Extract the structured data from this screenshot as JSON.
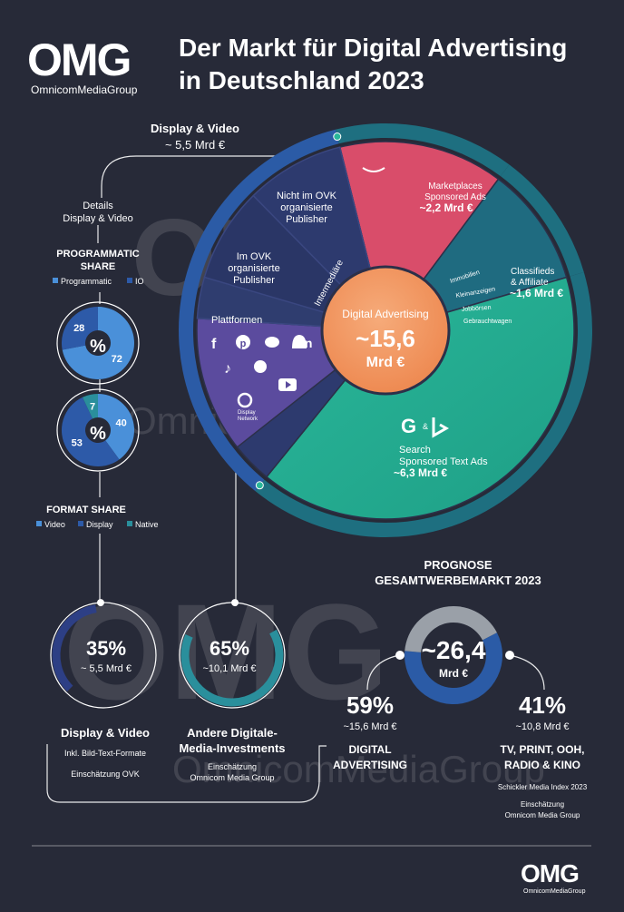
{
  "brand": {
    "logo_text": "OMG",
    "logo_sub": "OmnicomMediaGroup",
    "watermark_text": "OmnicomMediaGroup"
  },
  "title": {
    "line1": "Der Markt für Digital Advertising",
    "line2": "in Deutschland 2023"
  },
  "display_video": {
    "label": "Display & Video",
    "value": "~ 5,5 Mrd €"
  },
  "details": {
    "line1": "Details",
    "line2": "Display & Video"
  },
  "programmatic": {
    "title_line1": "PROGRAMMATIC",
    "title_line2": "SHARE",
    "legend": [
      {
        "label": "Programmatic",
        "color": "#4a90d9"
      },
      {
        "label": "IO",
        "color": "#2d5aa8"
      }
    ]
  },
  "format": {
    "title": "FORMAT SHARE",
    "legend": [
      {
        "label": "Video",
        "color": "#4a90d9"
      },
      {
        "label": "Display",
        "color": "#2d5aa8"
      },
      {
        "label": "Native",
        "color": "#2a8f9c"
      }
    ]
  },
  "percent_symbol": "%",
  "main_pie": {
    "center_label": "Digital Advertising",
    "center_value": "~15,6",
    "center_unit": "Mrd €",
    "labels": {
      "nicht_ovk": [
        "Nicht im OVK",
        "organisierte",
        "Publisher"
      ],
      "im_ovk": [
        "Im OVK",
        "organisierte",
        "Publisher"
      ],
      "intermediare": "Intermediäre",
      "plattformen": "Plattformen",
      "marketplaces": [
        "Marketplaces",
        "Sponsored Ads"
      ],
      "marketplaces_value": "~2,2 Mrd €",
      "classifieds": [
        "Classifieds",
        "& Affiliate"
      ],
      "classifieds_value": "~1,6 Mrd €",
      "classifieds_sub": [
        "Immobilien",
        "Kleinanzeigen",
        "Jobbörsen",
        "Gebrauchtwagen"
      ],
      "search": [
        "Search",
        "Sponsored Text Ads"
      ],
      "search_value": "~6,3 Mrd €",
      "google_display": [
        "Display",
        "Network"
      ],
      "search_logo_amp": "&"
    }
  },
  "bottom": {
    "dv_pct": "35%",
    "dv_value": "~ 5,5 Mrd €",
    "dv_label": "Display & Video",
    "dv_note1": "Inkl. Bild-Text-Formate",
    "dv_note2": "Einschätzung OVK",
    "other_pct": "65%",
    "other_value": "~10,1 Mrd €",
    "other_label1": "Andere Digitale-",
    "other_label2": "Media-Investments",
    "other_note1": "Einschätzung",
    "other_note2": "Omnicom Media Group"
  },
  "prognose": {
    "title1": "PROGNOSE",
    "title2": "GESAMTWERBEMARKT 2023",
    "value": "~26,4",
    "unit": "Mrd €",
    "digital_pct": "59%",
    "digital_value": "~15,6 Mrd €",
    "digital_label1": "DIGITAL",
    "digital_label2": "ADVERTISING",
    "tv_pct": "41%",
    "tv_value": "~10,8 Mrd €",
    "tv_label1": "TV, PRINT, OOH,",
    "tv_label2": "RADIO & KINO",
    "source1": "Schickler Media Index 2023",
    "source2": "Einschätzung",
    "source3": "Omnicom Media Group"
  },
  "chart_data": [
    {
      "type": "pie",
      "title": "Digital Advertising",
      "total": "~15,6 Mrd €",
      "categories": [
        "Display & Video",
        "Marketplaces Sponsored Ads",
        "Classifieds & Affiliate",
        "Search Sponsored Text Ads"
      ],
      "values": [
        5.5,
        2.2,
        1.6,
        6.3
      ],
      "unit": "Mrd €"
    },
    {
      "type": "pie",
      "title": "PROGRAMMATIC SHARE",
      "categories": [
        "Programmatic",
        "IO"
      ],
      "values": [
        72,
        28
      ],
      "unit": "%"
    },
    {
      "type": "pie",
      "title": "FORMAT SHARE",
      "categories": [
        "Video",
        "Display",
        "Native"
      ],
      "values": [
        40,
        53,
        7
      ],
      "unit": "%"
    },
    {
      "type": "pie",
      "categories": [
        "Display & Video",
        "Andere Digitale-Media-Investments"
      ],
      "values": [
        35,
        65
      ],
      "unit": "%"
    },
    {
      "type": "pie",
      "title": "PROGNOSE GESAMTWERBEMARKT 2023",
      "total": "~26,4 Mrd €",
      "categories": [
        "DIGITAL ADVERTISING",
        "TV, PRINT, OOH, RADIO & KINO"
      ],
      "values": [
        59,
        41
      ],
      "unit": "%"
    }
  ]
}
